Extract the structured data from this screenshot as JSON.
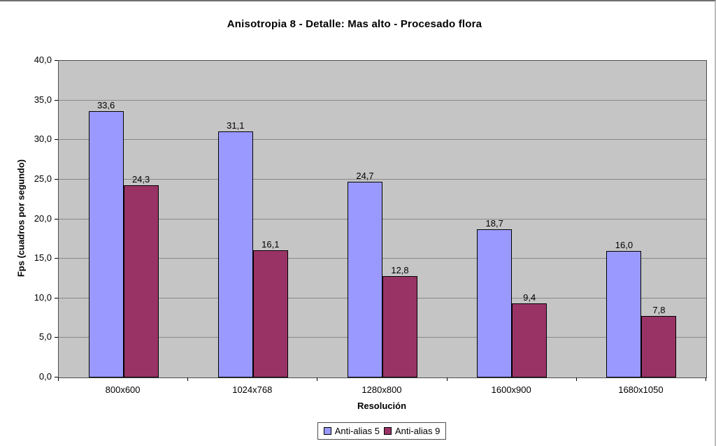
{
  "chart_data": {
    "type": "bar",
    "title": "Anisotropia 8 - Detalle: Mas alto - Procesado flora",
    "categories": [
      "800x600",
      "1024x768",
      "1280x800",
      "1600x900",
      "1680x1050"
    ],
    "series": [
      {
        "name": "Anti-alias 5",
        "color": "#9999FF",
        "values": [
          33.6,
          31.1,
          24.7,
          18.7,
          16.0
        ],
        "labels": [
          "33,6",
          "31,1",
          "24,7",
          "18,7",
          "16,0"
        ]
      },
      {
        "name": "Anti-alias 9",
        "color": "#993366",
        "values": [
          24.3,
          16.1,
          12.8,
          9.4,
          7.8
        ],
        "labels": [
          "24,3",
          "16,1",
          "12,8",
          "9,4",
          "7,8"
        ]
      }
    ],
    "xlabel": "Resolución",
    "ylabel": "Fps (cuadros por segundo)",
    "ylim": [
      0,
      40
    ],
    "ytick_step": 5,
    "ytick_labels": [
      "0,0",
      "5,0",
      "10,0",
      "15,0",
      "20,0",
      "25,0",
      "30,0",
      "35,0",
      "40,0"
    ],
    "grid": "horizontal",
    "legend_position": "bottom",
    "plot_bg": "#C5C5C5",
    "gridline_color": "#878787"
  }
}
